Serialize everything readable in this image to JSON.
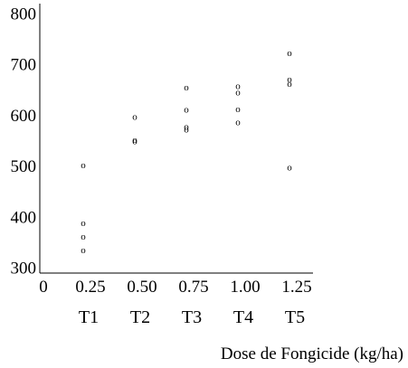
{
  "chart_data": {
    "type": "scatter",
    "title": "",
    "xlabel": "Dose de Fongicide (kg/ha)",
    "ylabel": "",
    "point_marker": "o",
    "ylim": [
      290,
      810
    ],
    "yticks": [
      300,
      400,
      500,
      600,
      700,
      800
    ],
    "ytick_labels": [
      "300",
      "400",
      "500",
      "600",
      "700",
      "800"
    ],
    "origin_label": "0",
    "categories": [
      "0.25",
      "0.50",
      "0.75",
      "1.00",
      "1.25"
    ],
    "treatments": [
      "T1",
      "T2",
      "T3",
      "T4",
      "T5"
    ],
    "series": [
      {
        "points": [
          {
            "x": 0.25,
            "y": 502
          },
          {
            "x": 0.25,
            "y": 388
          },
          {
            "x": 0.25,
            "y": 361
          },
          {
            "x": 0.25,
            "y": 335
          },
          {
            "x": 0.5,
            "y": 597
          },
          {
            "x": 0.5,
            "y": 552
          },
          {
            "x": 0.5,
            "y": 549
          },
          {
            "x": 0.75,
            "y": 655
          },
          {
            "x": 0.75,
            "y": 611
          },
          {
            "x": 0.75,
            "y": 577
          },
          {
            "x": 0.75,
            "y": 572
          },
          {
            "x": 1.0,
            "y": 657
          },
          {
            "x": 1.0,
            "y": 645
          },
          {
            "x": 1.0,
            "y": 612
          },
          {
            "x": 1.0,
            "y": 586
          },
          {
            "x": 1.25,
            "y": 722
          },
          {
            "x": 1.25,
            "y": 671
          },
          {
            "x": 1.25,
            "y": 662
          },
          {
            "x": 1.25,
            "y": 497
          }
        ]
      }
    ]
  }
}
